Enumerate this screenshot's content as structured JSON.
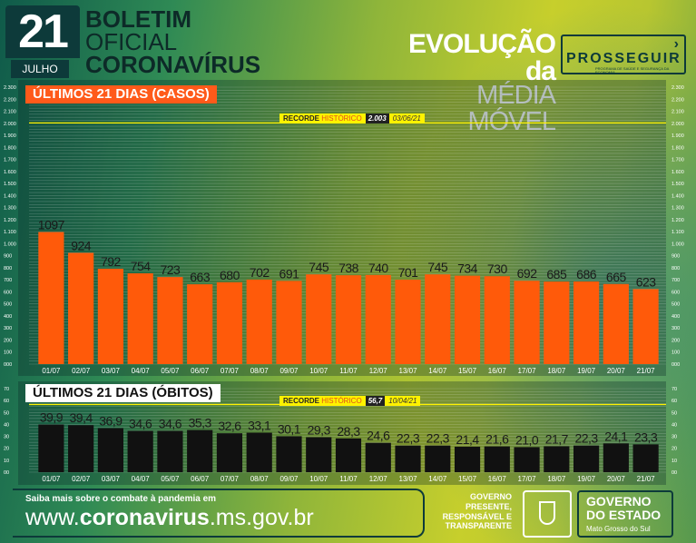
{
  "header": {
    "day": "21",
    "month": "JULHO",
    "title_line1": "BOLETIM",
    "title_line2": "OFICIAL",
    "title_line3": "CORONAVÍRUS",
    "evolution_line1": "EVOLUÇÃO da",
    "evolution_line2": "MÉDIA MÓVEL",
    "program_name": "PROSSEGUIR",
    "program_sub": "PROGRAMA DE SAÚDE E SEGURANÇA DA ECONOMIA"
  },
  "cases_panel": {
    "section_prefix": "ÚLTIMOS ",
    "section_highlight": "21 DIAS",
    "section_suffix": " (CASOS)",
    "record_label_pre": "RECORDE ",
    "record_label_em": "HISTÓRICO",
    "record_value": "2.003",
    "record_date": "03/06/21"
  },
  "deaths_panel": {
    "section_prefix": "ÚLTIMOS ",
    "section_highlight": "21 DIAS",
    "section_suffix": " (ÓBITOS)",
    "record_label_pre": "RECORDE ",
    "record_label_em": "HISTÓRICO",
    "record_value": "56,7",
    "record_date": "10/04/21"
  },
  "chart_data": [
    {
      "type": "bar",
      "title": "ÚLTIMOS 21 DIAS (CASOS)",
      "categories": [
        "01/07",
        "02/07",
        "03/07",
        "04/07",
        "05/07",
        "06/07",
        "07/07",
        "08/07",
        "09/07",
        "10/07",
        "11/07",
        "12/07",
        "13/07",
        "14/07",
        "15/07",
        "16/07",
        "17/07",
        "18/07",
        "19/07",
        "20/07",
        "21/07"
      ],
      "values": [
        1097,
        924,
        792,
        754,
        723,
        663,
        680,
        702,
        691,
        745,
        738,
        740,
        701,
        745,
        734,
        730,
        692,
        685,
        686,
        665,
        623
      ],
      "value_labels": [
        "1097",
        "924",
        "792",
        "754",
        "723",
        "663",
        "680",
        "702",
        "691",
        "745",
        "738",
        "740",
        "701",
        "745",
        "734",
        "730",
        "692",
        "685",
        "686",
        "665",
        "623"
      ],
      "ylim": [
        0,
        2300
      ],
      "yticks": [
        0,
        100,
        200,
        300,
        400,
        500,
        600,
        700,
        800,
        900,
        1000,
        1100,
        1200,
        1300,
        1400,
        1500,
        1600,
        1700,
        1800,
        1900,
        2000,
        2100,
        2200,
        2300
      ],
      "ytick_labels": [
        "000",
        "100",
        "200",
        "300",
        "400",
        "500",
        "600",
        "700",
        "800",
        "900",
        "1.000",
        "1.100",
        "1.200",
        "1.300",
        "1.400",
        "1.500",
        "1.600",
        "1.700",
        "1.800",
        "1.900",
        "2.000",
        "2.100",
        "2.200",
        "2.300"
      ],
      "record": 2003,
      "bar_color": "#ff5a0a",
      "grid": true
    },
    {
      "type": "bar",
      "title": "ÚLTIMOS 21 DIAS (ÓBITOS)",
      "categories": [
        "01/07",
        "02/07",
        "03/07",
        "04/07",
        "05/07",
        "06/07",
        "07/07",
        "08/07",
        "09/07",
        "10/07",
        "11/07",
        "12/07",
        "13/07",
        "14/07",
        "15/07",
        "16/07",
        "17/07",
        "18/07",
        "19/07",
        "20/07",
        "21/07"
      ],
      "values": [
        39.9,
        39.4,
        36.9,
        34.6,
        34.6,
        35.3,
        32.6,
        33.1,
        30.1,
        29.3,
        28.3,
        24.6,
        22.3,
        22.3,
        21.4,
        21.6,
        21.0,
        21.7,
        22.3,
        24.1,
        23.3
      ],
      "value_labels": [
        "39,9",
        "39,4",
        "36,9",
        "34,6",
        "34,6",
        "35,3",
        "32,6",
        "33,1",
        "30,1",
        "29,3",
        "28,3",
        "24,6",
        "22,3",
        "22,3",
        "21,4",
        "21,6",
        "21,0",
        "21,7",
        "22,3",
        "24,1",
        "23,3"
      ],
      "ylim": [
        0,
        70
      ],
      "yticks": [
        0,
        10,
        20,
        30,
        40,
        50,
        60,
        70
      ],
      "ytick_labels": [
        "00",
        "10",
        "20",
        "30",
        "40",
        "50",
        "60",
        "70"
      ],
      "record": 56.7,
      "bar_color": "#111111",
      "grid": true
    }
  ],
  "footer": {
    "info_text": "Saiba mais sobre o combate à pandemia em",
    "url_pre": "www.",
    "url_bold": "coronavirus",
    "url_post": ".ms.gov.br",
    "gov_slogan_1": "GOVERNO",
    "gov_slogan_2": "PRESENTE,",
    "gov_slogan_3": "RESPONSÁVEL E",
    "gov_slogan_4": "TRANSPARENTE",
    "gov_name_1": "GOVERNO",
    "gov_name_2": "DO ESTADO",
    "gov_state": "Mato Grosso do Sul"
  },
  "colors": {
    "cases_bar": "#ff5a0a",
    "deaths_bar": "#111111",
    "record_yellow": "#fff200",
    "dark_teal": "#0d3a3a"
  }
}
